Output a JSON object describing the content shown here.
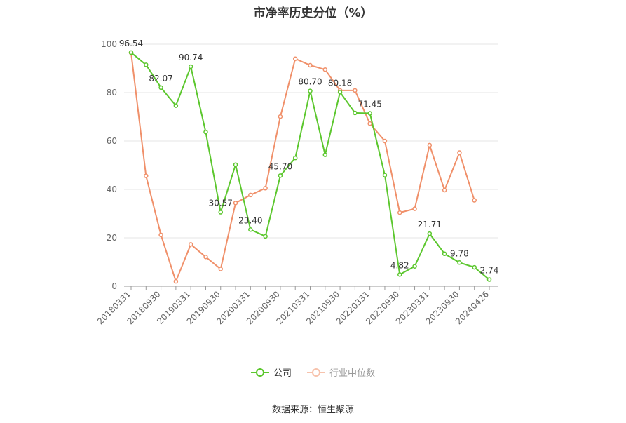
{
  "chart_data": {
    "type": "line",
    "title": "市净率历史分位（%）",
    "x": [
      "20180331",
      "20180630",
      "20180930",
      "20181231",
      "20190331",
      "20190630",
      "20190930",
      "20191231",
      "20200331",
      "20200630",
      "20200930",
      "20201231",
      "20210331",
      "20210630",
      "20210930",
      "20211231",
      "20220331",
      "20220630",
      "20220930",
      "20221231",
      "20230331",
      "20230630",
      "20230930",
      "20231231",
      "20240426"
    ],
    "x_tick_labels": [
      "20180331",
      "20180930",
      "20190331",
      "20190930",
      "20200331",
      "20200930",
      "20210331",
      "20210930",
      "20220331",
      "20220930",
      "20230331",
      "20230930",
      "20240426"
    ],
    "ylim": [
      0,
      100
    ],
    "y_ticks": [
      0,
      20,
      40,
      60,
      80,
      100
    ],
    "grid": true,
    "legend_position": "bottom",
    "series": [
      {
        "name": "公司",
        "color": "#5cc72e",
        "values": [
          96.54,
          91.5,
          82.07,
          74.6,
          90.74,
          63.7,
          30.57,
          50.2,
          23.4,
          20.6,
          45.7,
          53.0,
          80.7,
          54.3,
          80.18,
          71.6,
          71.45,
          45.9,
          4.82,
          8.2,
          21.71,
          13.4,
          9.78,
          7.8,
          2.74
        ],
        "labels": {
          "0": "96.54",
          "2": "82.07",
          "4": "90.74",
          "6": "30.57",
          "8": "23.40",
          "10": "45.70",
          "12": "80.70",
          "14": "80.18",
          "16": "71.45",
          "18": "4.82",
          "20": "21.71",
          "22": "9.78",
          "24": "2.74"
        }
      },
      {
        "name": "行业中位数",
        "color": "#f0906a",
        "values": [
          96.5,
          45.6,
          21.2,
          2.0,
          17.3,
          12.1,
          7.1,
          34.4,
          37.7,
          40.5,
          70.1,
          94.0,
          91.3,
          89.5,
          80.9,
          80.9,
          67.2,
          60.0,
          30.4,
          32.0,
          58.3,
          39.7,
          55.2,
          35.5,
          null
        ]
      }
    ]
  },
  "source_text": "数据来源：恒生聚源"
}
